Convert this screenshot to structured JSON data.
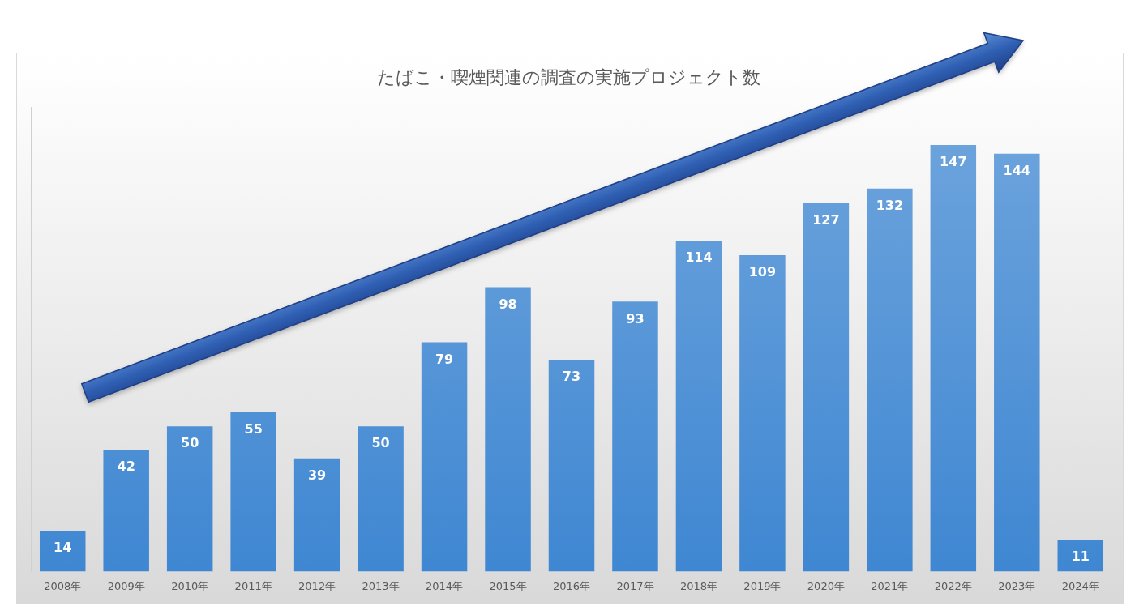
{
  "chart_data": {
    "type": "bar",
    "title": "たばこ・喫煙関連の調査の実施プロジェクト数",
    "categories": [
      "2008年",
      "2009年",
      "2010年",
      "2011年",
      "2012年",
      "2013年",
      "2014年",
      "2015年",
      "2016年",
      "2017年",
      "2018年",
      "2019年",
      "2020年",
      "2021年",
      "2022年",
      "2023年",
      "2024年"
    ],
    "values": [
      14,
      42,
      50,
      55,
      39,
      50,
      79,
      98,
      73,
      93,
      114,
      109,
      127,
      132,
      147,
      144,
      11
    ],
    "color": "#3f87d2",
    "ylim": [
      0,
      160
    ],
    "grid": false,
    "data_labels": true,
    "tick_labels": "x"
  }
}
